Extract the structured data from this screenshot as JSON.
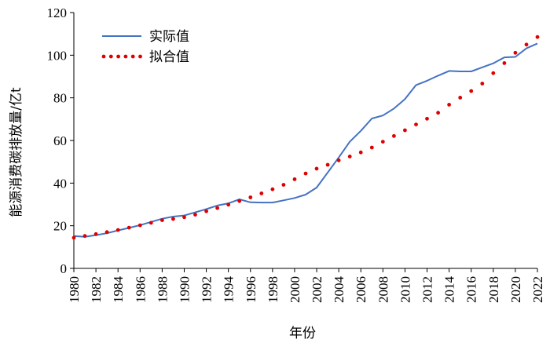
{
  "chart_data": {
    "type": "line",
    "xlabel": "年份",
    "ylabel": "能源消费碳排放量/亿t",
    "xlim": [
      1980,
      2022
    ],
    "ylim": [
      0,
      120
    ],
    "x_ticks": [
      1980,
      1982,
      1984,
      1986,
      1988,
      1990,
      1992,
      1994,
      1996,
      1998,
      2000,
      2002,
      2004,
      2006,
      2008,
      2010,
      2012,
      2014,
      2016,
      2018,
      2020,
      2022
    ],
    "y_ticks": [
      0,
      20,
      40,
      60,
      80,
      100,
      120
    ],
    "grid": false,
    "legend_position": "top-left",
    "x": [
      1980,
      1981,
      1982,
      1983,
      1984,
      1985,
      1986,
      1987,
      1988,
      1989,
      1990,
      1991,
      1992,
      1993,
      1994,
      1995,
      1996,
      1997,
      1998,
      1999,
      2000,
      2001,
      2002,
      2003,
      2004,
      2005,
      2006,
      2007,
      2008,
      2009,
      2010,
      2011,
      2012,
      2013,
      2014,
      2015,
      2016,
      2017,
      2018,
      2019,
      2020,
      2021,
      2022
    ],
    "series": [
      {
        "name": "实际值",
        "style": "solid",
        "color": "#4472C4",
        "values": [
          15.2,
          14.8,
          15.6,
          16.5,
          17.8,
          19.0,
          20.3,
          21.8,
          23.3,
          24.3,
          24.8,
          26.3,
          27.8,
          29.5,
          30.5,
          32.4,
          31.0,
          30.9,
          30.9,
          31.9,
          33.0,
          34.6,
          37.9,
          45.0,
          52.0,
          59.4,
          64.5,
          70.3,
          71.7,
          75.0,
          79.4,
          86.0,
          88.0,
          90.4,
          92.6,
          92.4,
          92.4,
          94.3,
          96.2,
          99.0,
          99.2,
          103.2,
          105.5
        ]
      },
      {
        "name": "拟合值",
        "style": "dotted",
        "color": "#E00000",
        "values": [
          14.4,
          15.2,
          16.1,
          17.0,
          18.0,
          19.1,
          20.2,
          21.4,
          22.6,
          23.2,
          24.0,
          25.2,
          26.8,
          28.3,
          29.9,
          31.6,
          33.3,
          35.2,
          37.1,
          39.2,
          41.8,
          44.5,
          46.8,
          48.6,
          50.7,
          52.5,
          54.4,
          56.7,
          59.4,
          62.1,
          64.8,
          67.5,
          70.2,
          73.0,
          76.8,
          80.1,
          83.2,
          86.7,
          91.6,
          96.3,
          101.1,
          105.0,
          108.5
        ]
      }
    ]
  }
}
